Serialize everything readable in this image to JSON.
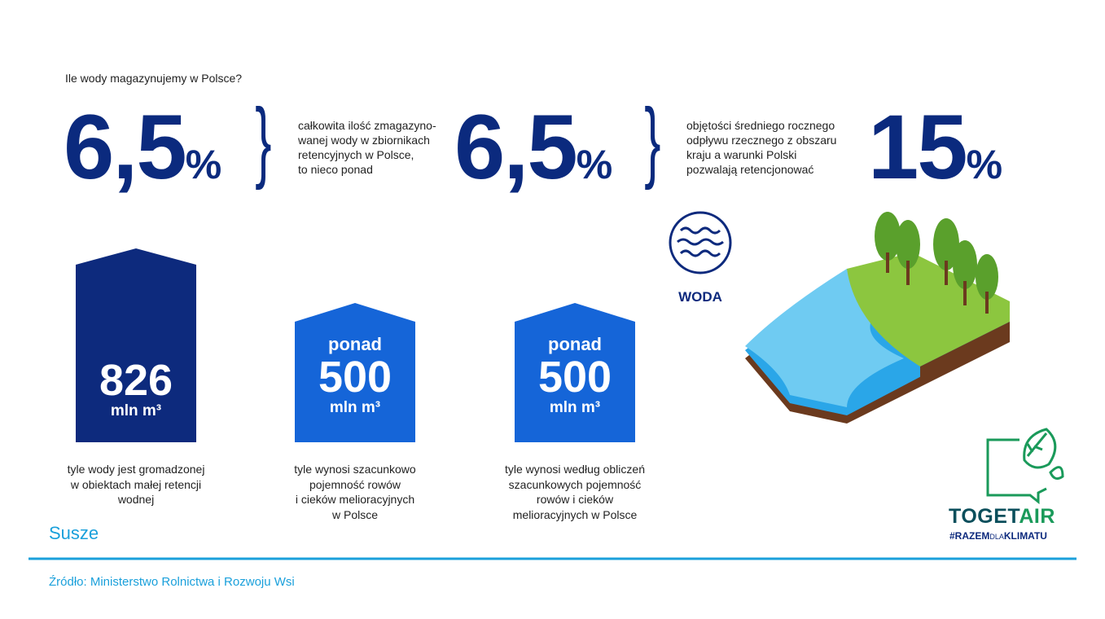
{
  "header": {
    "question": "Ile wody magazynujemy w Polsce?"
  },
  "stats": [
    {
      "number": "6,5",
      "unit": "%",
      "description": [
        "całkowita ilość zmagazyno-",
        "wanej wody w zbiornikach",
        "retencyjnych w Polsce,",
        "to nieco ponad"
      ]
    },
    {
      "number": "6,5",
      "unit": "%",
      "description": [
        "objętości średniego rocznego",
        "odpływu rzecznego z obszaru",
        "kraju a warunki Polski",
        "pozwalają retencjonować"
      ]
    },
    {
      "number": "15",
      "unit": "%"
    }
  ],
  "boxes": [
    {
      "value": "826",
      "unit": "mln m³",
      "caption": [
        "tyle wody jest gromadzonej",
        "w obiektach małej retencji",
        "wodnej"
      ]
    },
    {
      "prefix": "ponad",
      "value": "500",
      "unit": "mln m³",
      "caption": [
        "tyle wynosi szacunkowo",
        "pojemność rowów",
        "i cieków melioracyjnych",
        "w Polsce"
      ]
    },
    {
      "prefix": "ponad",
      "value": "500",
      "unit": "mln m³",
      "caption": [
        "tyle wynosi według obliczeń",
        "szacunkowych pojemność",
        "rowów i cieków",
        "melioracyjnych w Polsce"
      ]
    }
  ],
  "icon": {
    "label": "WODA"
  },
  "section": "Susze",
  "source": "Źródło: Ministerstwo Rolnictwa i Rozwoju Wsi",
  "logo": {
    "name_part1": "TOGET",
    "name_part2": "AIR",
    "tag_part1": "#RAZEM",
    "tag_part2": "DLA",
    "tag_part3": "KLIMATU"
  }
}
